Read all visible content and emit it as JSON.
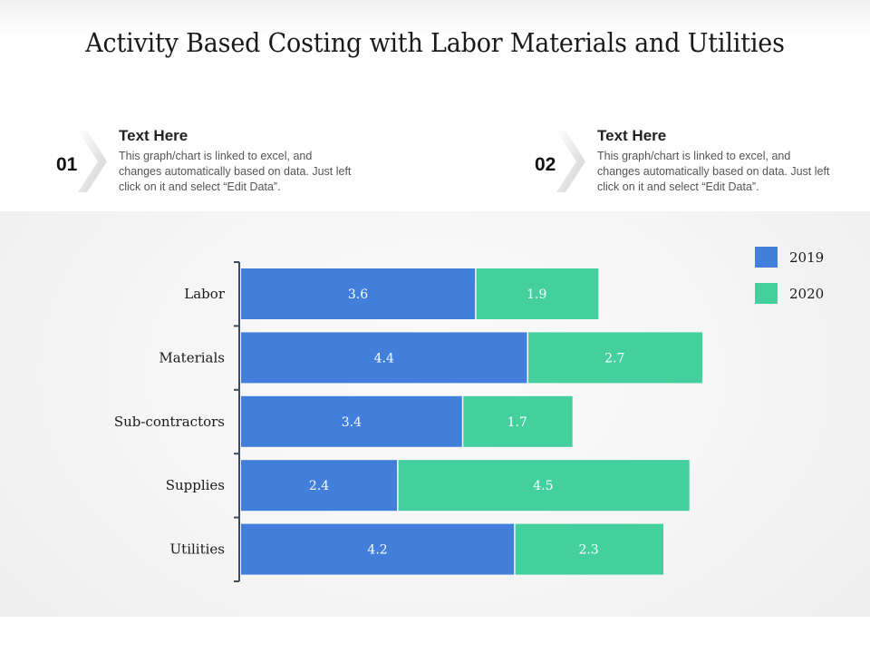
{
  "title": "Activity Based Costing with Labor Materials and Utilities",
  "info": [
    {
      "number": "01",
      "heading": "Text Here",
      "text": "This graph/chart is linked to excel, and changes automatically based on data. Just left click on it and select “Edit Data”."
    },
    {
      "number": "02",
      "heading": "Text Here",
      "text": "This graph/chart is linked to excel, and changes automatically based on data. Just left click on it and select “Edit Data”."
    }
  ],
  "chart_data": {
    "type": "bar",
    "orientation": "horizontal",
    "stacked": true,
    "title": "Activity Based Costing with Labor Materials and Utilities",
    "categories": [
      "Labor",
      "Materials",
      "Sub-contractors",
      "Supplies",
      "Utilities"
    ],
    "series": [
      {
        "name": "2019",
        "color": "#427fdb",
        "values": [
          3.6,
          4.4,
          3.4,
          2.4,
          4.2
        ]
      },
      {
        "name": "2020",
        "color": "#44cf9f",
        "values": [
          1.9,
          2.7,
          1.7,
          4.5,
          2.3
        ]
      }
    ],
    "xlabel": "",
    "ylabel": "",
    "grid": false,
    "x_axis_visible": false,
    "legend_position": "top-right",
    "data_labels": true
  }
}
